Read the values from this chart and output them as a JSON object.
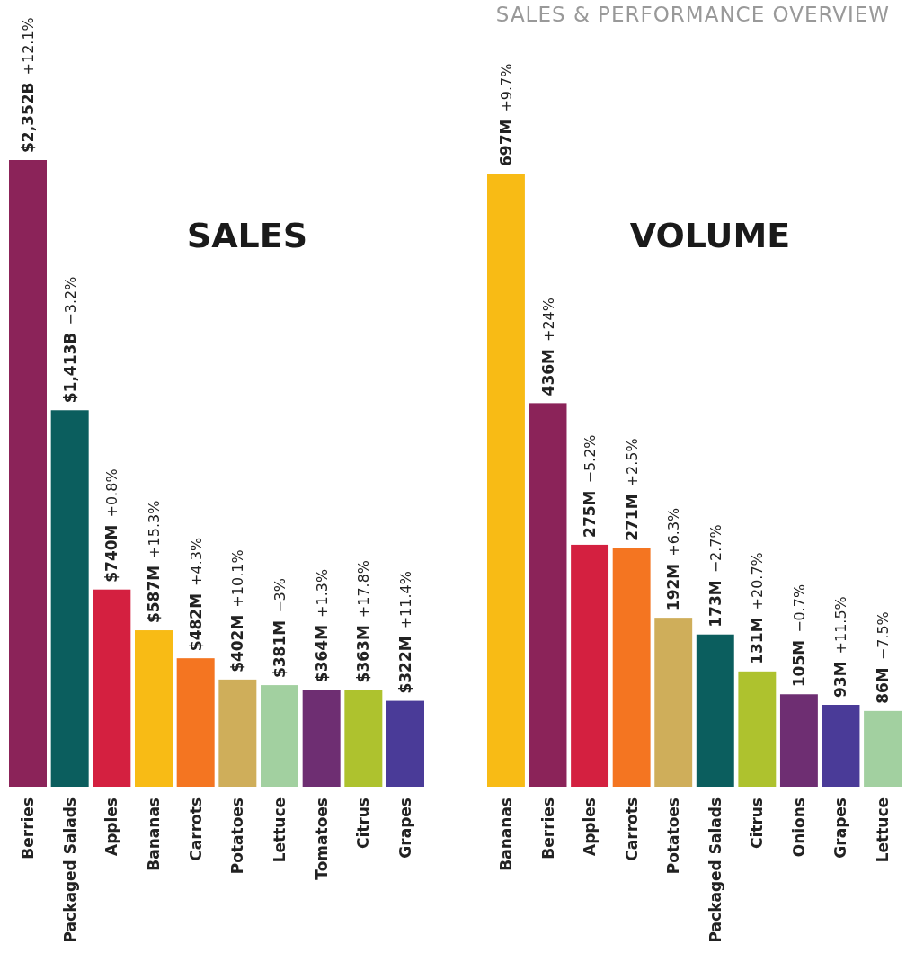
{
  "chart_data": [
    {
      "type": "bar",
      "title": "SALES",
      "categories": [
        "Berries",
        "Packaged Salads",
        "Apples",
        "Bananas",
        "Carrots",
        "Potatoes",
        "Lettuce",
        "Tomatoes",
        "Citrus",
        "Grapes"
      ],
      "values": [
        2352,
        1413,
        740,
        587,
        482,
        402,
        381,
        364,
        363,
        322
      ],
      "colors": [
        "#8b2359",
        "#0b5e5e",
        "#d42040",
        "#f8bb15",
        "#f47521",
        "#cfae5a",
        "#a2d0a0",
        "#6e2e72",
        "#aec22e",
        "#4a3b98"
      ],
      "value_labels": [
        "$2,352B",
        "$1,413B",
        "$740M",
        "$587M",
        "$482M",
        "$402M",
        "$381M",
        "$364M",
        "$363M",
        "$322M"
      ],
      "annotations": [
        "+12.1%",
        "−3.2%",
        "+0.8%",
        "+15.3%",
        "+4.3%",
        "+10.1%",
        "−3%",
        "+1.3%",
        "+17.8%",
        "+11.4%",
        "SALES & PERFORMANCE OVERVIEW"
      ]
    },
    {
      "type": "bar",
      "title": "VOLUME",
      "categories": [
        "Bananas",
        "Berries",
        "Apples",
        "Carrots",
        "Potatoes",
        "Packaged Salads",
        "Citrus",
        "Onions",
        "Grapes",
        "Lettuce"
      ],
      "values": [
        697,
        436,
        275,
        271,
        192,
        173,
        131,
        105,
        93,
        86
      ],
      "colors": [
        "#f8bb15",
        "#8b2359",
        "#d42040",
        "#f47521",
        "#cfae5a",
        "#0b5e5e",
        "#aec22e",
        "#6e2e72",
        "#4a3b98",
        "#a2d0a0"
      ],
      "value_labels": [
        "697M",
        "436M",
        "275M",
        "271M",
        "192M",
        "173M",
        "131M",
        "105M",
        "93M",
        "86M"
      ],
      "annotations": [
        "+9.7%",
        "+24%",
        "−5.2%",
        "+2.5%",
        "+6.3%",
        "−2.7%",
        "+20.7%",
        "−0.7%",
        "+11.5%",
        "−7.5%"
      ]
    }
  ]
}
